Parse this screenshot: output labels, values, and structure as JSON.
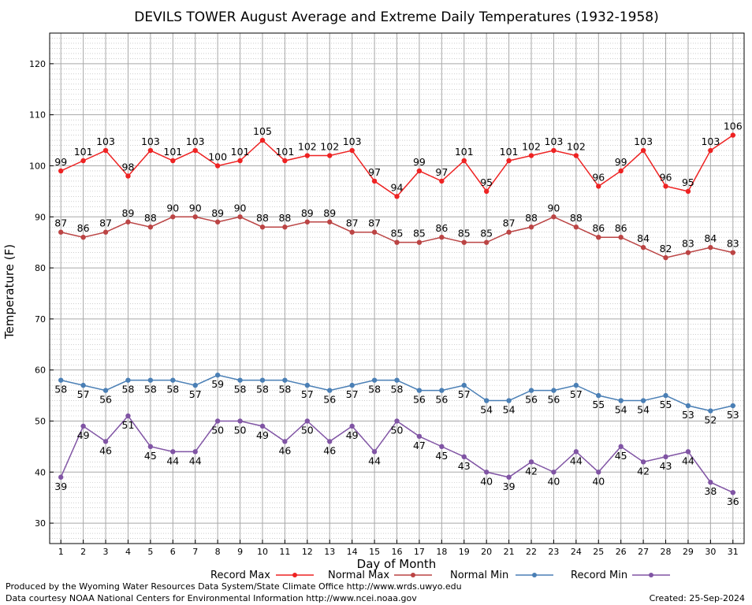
{
  "chart_data": {
    "type": "line",
    "title": "DEVILS TOWER August Average and Extreme Daily Temperatures (1932-1958)",
    "xlabel": "Day of Month",
    "ylabel": "Temperature (F)",
    "xlim": [
      0.5,
      31.5
    ],
    "ylim": [
      26,
      126
    ],
    "y_ticks": [
      30,
      40,
      50,
      60,
      70,
      80,
      90,
      100,
      110,
      120
    ],
    "x": [
      1,
      2,
      3,
      4,
      5,
      6,
      7,
      8,
      9,
      10,
      11,
      12,
      13,
      14,
      15,
      16,
      17,
      18,
      19,
      20,
      21,
      22,
      23,
      24,
      25,
      26,
      27,
      28,
      29,
      30,
      31
    ],
    "grid": true,
    "legend_position": "bottom",
    "series": [
      {
        "name": "Record Max",
        "color": "#ee2222",
        "label_pos": "above",
        "values": [
          99,
          101,
          103,
          98,
          103,
          101,
          103,
          100,
          101,
          105,
          101,
          102,
          102,
          103,
          97,
          94,
          99,
          97,
          101,
          95,
          101,
          102,
          103,
          102,
          96,
          99,
          103,
          96,
          95,
          103,
          106
        ]
      },
      {
        "name": "Normal Max",
        "color": "#bb4444",
        "label_pos": "above",
        "values": [
          87,
          86,
          87,
          89,
          88,
          90,
          90,
          89,
          90,
          88,
          88,
          89,
          89,
          87,
          87,
          85,
          85,
          86,
          85,
          85,
          87,
          88,
          90,
          88,
          86,
          86,
          84,
          82,
          83,
          84,
          83
        ]
      },
      {
        "name": "Normal Min",
        "color": "#4a7fb5",
        "label_pos": "below",
        "values": [
          58,
          57,
          56,
          58,
          58,
          58,
          57,
          59,
          58,
          58,
          58,
          57,
          56,
          57,
          58,
          58,
          56,
          56,
          57,
          54,
          54,
          56,
          56,
          57,
          55,
          54,
          54,
          55,
          53,
          52,
          53
        ]
      },
      {
        "name": "Record Min",
        "color": "#8054a4",
        "label_pos": "below",
        "values": [
          39,
          49,
          46,
          51,
          45,
          44,
          44,
          50,
          50,
          49,
          46,
          50,
          46,
          49,
          44,
          50,
          47,
          45,
          43,
          40,
          39,
          42,
          40,
          44,
          40,
          45,
          42,
          43,
          44,
          38,
          36
        ]
      }
    ]
  },
  "footer": {
    "line1": "Produced by the Wyoming Water Resources Data System/State Climate Office http://www.wrds.uwyo.edu",
    "line2": "Data courtesy NOAA National Centers for Environmental Information http://www.ncei.noaa.gov",
    "created": "Created:  25-Sep-2024"
  }
}
